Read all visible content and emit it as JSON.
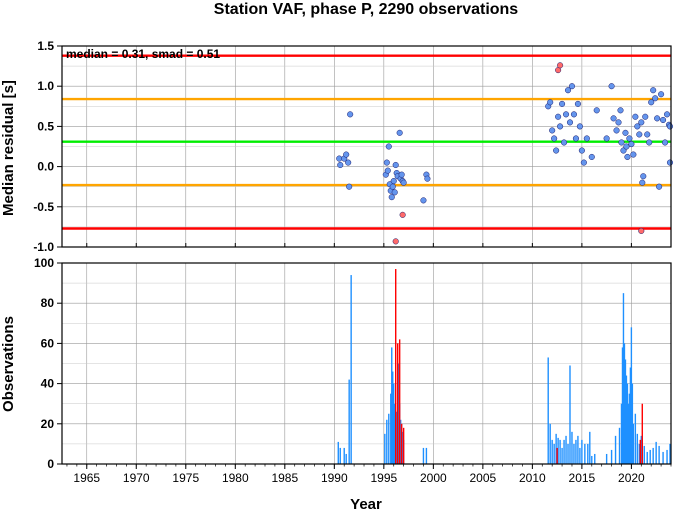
{
  "title": "Station VAF, phase P, 2290 observations",
  "chart_data": [
    {
      "type": "scatter",
      "title": "Station VAF, phase P, 2290 observations",
      "xlabel": "",
      "ylabel": "Median residual [s]",
      "xlim": [
        1962.5,
        2024.0
      ],
      "ylim": [
        -1.0,
        1.5
      ],
      "yticks": [
        "1.5",
        "1.0",
        "0.5",
        "0.0",
        "-0.5",
        "-1.0"
      ],
      "annotation": "median = 0.31, smad = 0.51",
      "grid": true,
      "reference_lines": [
        {
          "y": 1.38,
          "color": "#ff0000"
        },
        {
          "y": 0.84,
          "color": "#ffa500"
        },
        {
          "y": 0.31,
          "color": "#00ee00"
        },
        {
          "y": -0.23,
          "color": "#ffa500"
        },
        {
          "y": -0.77,
          "color": "#ff0000"
        }
      ],
      "series": [
        {
          "color": "#6495ed",
          "points": [
            [
              1990.5,
              0.1
            ],
            [
              1990.6,
              0.02
            ],
            [
              1991.0,
              0.1
            ],
            [
              1991.2,
              0.15
            ],
            [
              1991.4,
              0.05
            ],
            [
              1991.5,
              -0.25
            ],
            [
              1991.6,
              0.65
            ],
            [
              1995.2,
              -0.1
            ],
            [
              1995.3,
              0.05
            ],
            [
              1995.4,
              -0.05
            ],
            [
              1995.5,
              0.25
            ],
            [
              1995.6,
              -0.22
            ],
            [
              1995.7,
              -0.3
            ],
            [
              1995.8,
              -0.38
            ],
            [
              1995.9,
              -0.25
            ],
            [
              1996.0,
              -0.18
            ],
            [
              1996.1,
              -0.32
            ],
            [
              1996.2,
              0.02
            ],
            [
              1996.3,
              -0.08
            ],
            [
              1996.4,
              -0.12
            ],
            [
              1996.6,
              0.42
            ],
            [
              1996.7,
              -0.15
            ],
            [
              1996.8,
              -0.1
            ],
            [
              1996.9,
              -0.18
            ],
            [
              1997.0,
              -0.2
            ],
            [
              1999.0,
              -0.42
            ],
            [
              1999.3,
              -0.1
            ],
            [
              1999.4,
              -0.15
            ],
            [
              2011.6,
              0.75
            ],
            [
              2011.8,
              0.8
            ],
            [
              2012.0,
              0.45
            ],
            [
              2012.2,
              0.35
            ],
            [
              2012.4,
              0.2
            ],
            [
              2012.6,
              0.62
            ],
            [
              2012.8,
              0.5
            ],
            [
              2013.0,
              0.78
            ],
            [
              2013.2,
              0.3
            ],
            [
              2013.4,
              0.65
            ],
            [
              2013.6,
              0.95
            ],
            [
              2013.8,
              0.55
            ],
            [
              2014.0,
              1.0
            ],
            [
              2014.2,
              0.65
            ],
            [
              2014.4,
              0.35
            ],
            [
              2014.6,
              0.78
            ],
            [
              2014.8,
              0.5
            ],
            [
              2015.0,
              0.2
            ],
            [
              2015.2,
              0.05
            ],
            [
              2015.5,
              0.35
            ],
            [
              2016.0,
              0.12
            ],
            [
              2016.5,
              0.7
            ],
            [
              2017.5,
              0.35
            ],
            [
              2018.0,
              1.0
            ],
            [
              2018.2,
              0.6
            ],
            [
              2018.5,
              0.45
            ],
            [
              2018.7,
              0.55
            ],
            [
              2018.9,
              0.7
            ],
            [
              2019.0,
              0.3
            ],
            [
              2019.2,
              0.2
            ],
            [
              2019.4,
              0.42
            ],
            [
              2019.5,
              0.25
            ],
            [
              2019.6,
              0.12
            ],
            [
              2019.8,
              0.35
            ],
            [
              2020.0,
              0.28
            ],
            [
              2020.2,
              0.15
            ],
            [
              2020.4,
              0.62
            ],
            [
              2020.6,
              0.5
            ],
            [
              2020.8,
              0.4
            ],
            [
              2021.0,
              0.55
            ],
            [
              2021.1,
              -0.2
            ],
            [
              2021.2,
              -0.12
            ],
            [
              2021.4,
              0.62
            ],
            [
              2021.6,
              0.4
            ],
            [
              2021.8,
              0.3
            ],
            [
              2022.0,
              0.8
            ],
            [
              2022.2,
              0.95
            ],
            [
              2022.4,
              0.85
            ],
            [
              2022.6,
              0.6
            ],
            [
              2022.8,
              -0.25
            ],
            [
              2023.0,
              0.9
            ],
            [
              2023.2,
              0.58
            ],
            [
              2023.4,
              0.3
            ],
            [
              2023.6,
              0.65
            ],
            [
              2023.8,
              0.52
            ],
            [
              2023.9,
              0.05
            ],
            [
              2024.0,
              0.5
            ]
          ]
        },
        {
          "color": "#ff6a6a",
          "points": [
            [
              1996.2,
              -0.93
            ],
            [
              1996.9,
              -0.6
            ],
            [
              2012.6,
              1.2
            ],
            [
              2012.8,
              1.26
            ],
            [
              2021.0,
              -0.8
            ]
          ]
        }
      ]
    },
    {
      "type": "bar",
      "xlabel": "Year",
      "ylabel": "Observations",
      "xlim": [
        1962.5,
        2024.0
      ],
      "ylim": [
        0,
        100
      ],
      "xticks": [
        "1965",
        "1970",
        "1975",
        "1980",
        "1985",
        "1990",
        "1995",
        "2000",
        "2005",
        "2010",
        "2015",
        "2020"
      ],
      "yticks": [
        "100",
        "80",
        "60",
        "40",
        "20",
        "0"
      ],
      "grid": true,
      "series": [
        {
          "color": "#1e90ff",
          "bars": [
            [
              1990.4,
              11
            ],
            [
              1990.6,
              8
            ],
            [
              1991.0,
              8
            ],
            [
              1991.2,
              5
            ],
            [
              1991.5,
              42
            ],
            [
              1991.7,
              94
            ],
            [
              1995.1,
              15
            ],
            [
              1995.3,
              22
            ],
            [
              1995.5,
              25
            ],
            [
              1995.7,
              35
            ],
            [
              1995.8,
              58
            ],
            [
              1995.9,
              46
            ],
            [
              1996.0,
              40
            ],
            [
              1996.1,
              30
            ],
            [
              1996.3,
              26
            ],
            [
              1996.4,
              38
            ],
            [
              1996.5,
              50
            ],
            [
              1996.6,
              30
            ],
            [
              1996.7,
              22
            ],
            [
              1996.8,
              20
            ],
            [
              1996.9,
              16
            ],
            [
              1997.0,
              12
            ],
            [
              1999.0,
              8
            ],
            [
              1999.3,
              8
            ],
            [
              2011.6,
              53
            ],
            [
              2011.8,
              20
            ],
            [
              2012.0,
              12
            ],
            [
              2012.2,
              10
            ],
            [
              2012.4,
              15
            ],
            [
              2012.6,
              13
            ],
            [
              2012.8,
              12
            ],
            [
              2013.0,
              8
            ],
            [
              2013.2,
              12
            ],
            [
              2013.4,
              14
            ],
            [
              2013.6,
              10
            ],
            [
              2013.8,
              49
            ],
            [
              2014.0,
              16
            ],
            [
              2014.2,
              10
            ],
            [
              2014.4,
              12
            ],
            [
              2014.6,
              14
            ],
            [
              2014.8,
              8
            ],
            [
              2015.0,
              12
            ],
            [
              2015.3,
              10
            ],
            [
              2015.6,
              10
            ],
            [
              2015.8,
              16
            ],
            [
              2016.0,
              4
            ],
            [
              2016.3,
              5
            ],
            [
              2017.5,
              5
            ],
            [
              2018.0,
              7
            ],
            [
              2018.4,
              14
            ],
            [
              2018.8,
              18
            ],
            [
              2019.0,
              30
            ],
            [
              2019.1,
              58
            ],
            [
              2019.2,
              85
            ],
            [
              2019.3,
              60
            ],
            [
              2019.4,
              52
            ],
            [
              2019.5,
              44
            ],
            [
              2019.6,
              40
            ],
            [
              2019.7,
              30
            ],
            [
              2019.8,
              35
            ],
            [
              2019.9,
              48
            ],
            [
              2020.0,
              68
            ],
            [
              2020.1,
              40
            ],
            [
              2020.2,
              20
            ],
            [
              2020.4,
              25
            ],
            [
              2020.6,
              15
            ],
            [
              2020.8,
              10
            ],
            [
              2021.0,
              14
            ],
            [
              2021.3,
              9
            ],
            [
              2021.6,
              6
            ],
            [
              2021.9,
              7
            ],
            [
              2022.2,
              8
            ],
            [
              2022.5,
              11
            ],
            [
              2022.8,
              9
            ],
            [
              2023.2,
              6
            ],
            [
              2023.6,
              7
            ],
            [
              2023.9,
              10
            ]
          ]
        },
        {
          "color": "#ff0000",
          "bars": [
            [
              1996.2,
              97
            ],
            [
              1996.4,
              60
            ],
            [
              1996.6,
              62
            ],
            [
              1996.8,
              20
            ],
            [
              1997.0,
              18
            ],
            [
              2012.5,
              8
            ],
            [
              2020.9,
              12
            ],
            [
              2021.1,
              30
            ]
          ]
        }
      ]
    }
  ]
}
